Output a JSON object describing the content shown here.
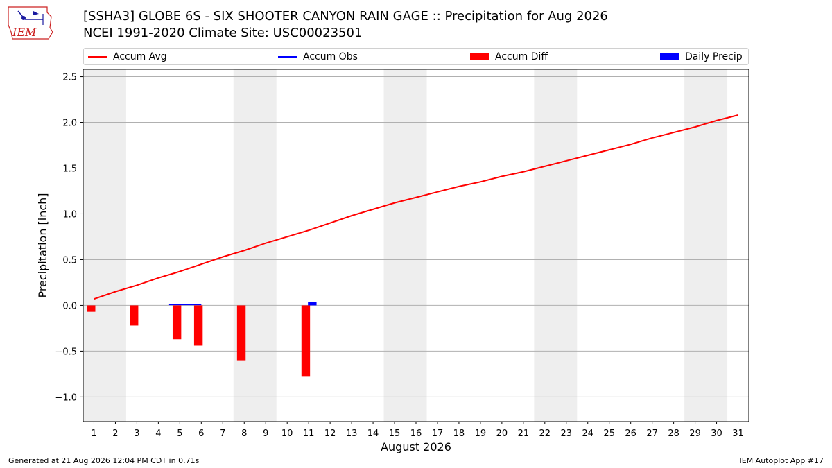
{
  "header": {
    "title_line1": "[SSHA3] GLOBE 6S - SIX SHOOTER CANYON RAIN GAGE :: Precipitation for Aug 2026",
    "title_line2": "NCEI 1991-2020 Climate Site: USC00023501",
    "logo_text": "IEM"
  },
  "footer": {
    "left": "Generated at 21 Aug 2026 12:04 PM CDT in 0.71s",
    "right": "IEM Autoplot App #17"
  },
  "colors": {
    "avg": "#ff0000",
    "obs": "#0000ff",
    "diff": "#ff0000",
    "daily": "#0000ff",
    "weekend": "#eeeeee",
    "grid": "#b0b0b0"
  },
  "chart_data": {
    "type": "bar",
    "xlabel": "August 2026",
    "ylabel": "Precipitation [inch]",
    "xlim": [
      0.5,
      31.5
    ],
    "ylim": [
      -1.27,
      2.58
    ],
    "yticks": [
      -1.0,
      -0.5,
      0.0,
      0.5,
      1.0,
      1.5,
      2.0,
      2.5
    ],
    "ytick_labels": [
      "−1.0",
      "−0.5",
      "0.0",
      "0.5",
      "1.0",
      "1.5",
      "2.0",
      "2.5"
    ],
    "xticks": [
      1,
      2,
      3,
      4,
      5,
      6,
      7,
      8,
      9,
      10,
      11,
      12,
      13,
      14,
      15,
      16,
      17,
      18,
      19,
      20,
      21,
      22,
      23,
      24,
      25,
      26,
      27,
      28,
      29,
      30,
      31
    ],
    "grid": "horizontal",
    "legend_position": "top",
    "shaded_weekends": [
      [
        1,
        2
      ],
      [
        8,
        9
      ],
      [
        15,
        16
      ],
      [
        22,
        23
      ],
      [
        29,
        30
      ]
    ],
    "series": [
      {
        "name": "Accum Avg",
        "kind": "line",
        "x": [
          1,
          2,
          3,
          4,
          5,
          6,
          7,
          8,
          9,
          10,
          11,
          12,
          13,
          14,
          15,
          16,
          17,
          18,
          19,
          20,
          21,
          22,
          23,
          24,
          25,
          26,
          27,
          28,
          29,
          30,
          31
        ],
        "values": [
          0.07,
          0.15,
          0.22,
          0.3,
          0.37,
          0.45,
          0.53,
          0.6,
          0.68,
          0.75,
          0.82,
          0.9,
          0.98,
          1.05,
          1.12,
          1.18,
          1.24,
          1.3,
          1.35,
          1.41,
          1.46,
          1.52,
          1.58,
          1.64,
          1.7,
          1.76,
          1.83,
          1.89,
          1.95,
          2.02,
          2.08
        ]
      },
      {
        "name": "Accum Obs",
        "kind": "line",
        "x": [
          4.5,
          6.0
        ],
        "values": [
          0.01,
          0.01
        ]
      },
      {
        "name": "Accum Diff",
        "kind": "bar",
        "x": [
          1,
          3,
          5,
          6,
          8,
          11
        ],
        "values": [
          -0.07,
          -0.22,
          -0.37,
          -0.44,
          -0.6,
          -0.78
        ]
      },
      {
        "name": "Daily Precip",
        "kind": "bar",
        "x": [
          11
        ],
        "values": [
          0.04
        ]
      }
    ]
  }
}
